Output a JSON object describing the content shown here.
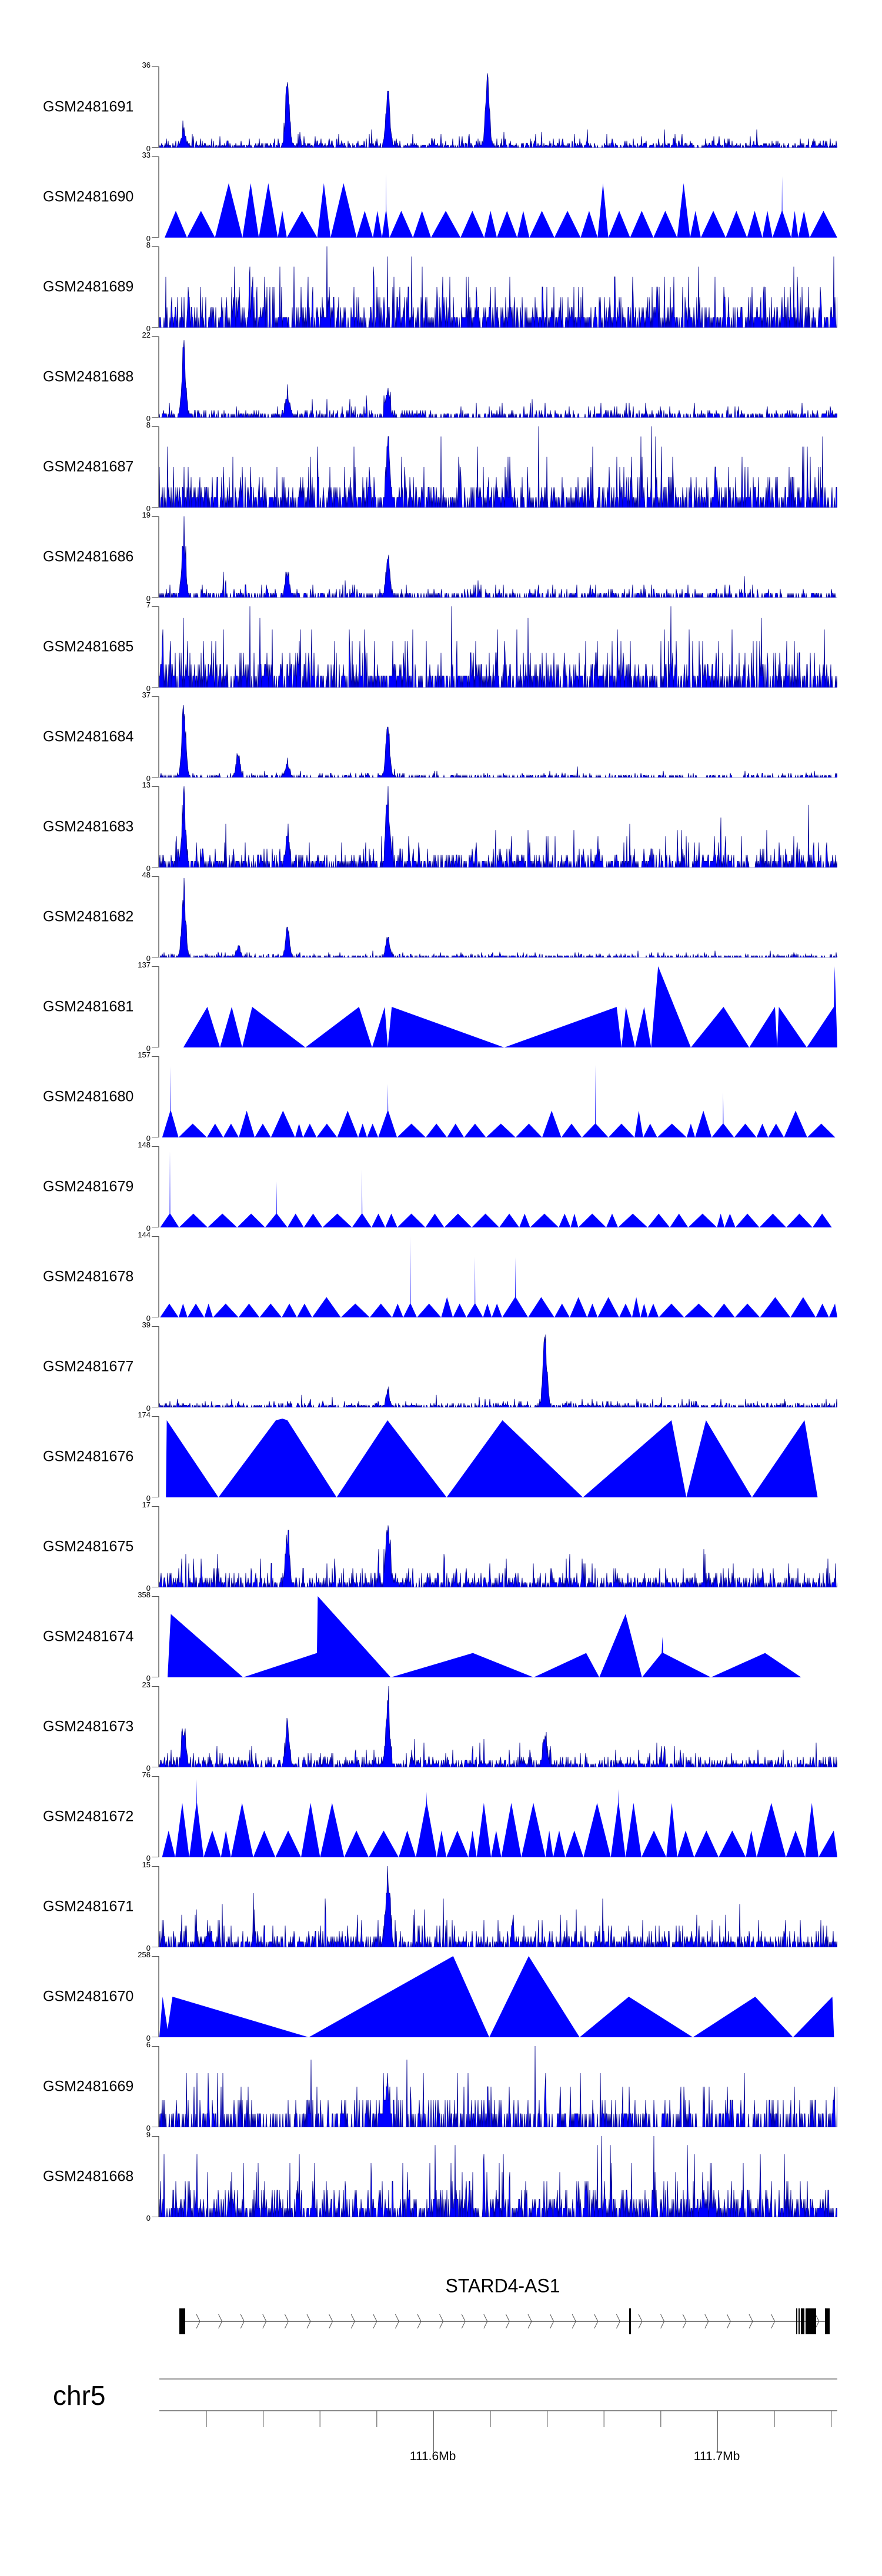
{
  "tracks": [
    {
      "name": "GSM2481691",
      "ymax": "36",
      "ymin": "0"
    },
    {
      "name": "GSM2481690",
      "ymax": "33",
      "ymin": "0"
    },
    {
      "name": "GSM2481689",
      "ymax": "8",
      "ymin": "0"
    },
    {
      "name": "GSM2481688",
      "ymax": "22",
      "ymin": "0"
    },
    {
      "name": "GSM2481687",
      "ymax": "8",
      "ymin": "0"
    },
    {
      "name": "GSM2481686",
      "ymax": "19",
      "ymin": "0"
    },
    {
      "name": "GSM2481685",
      "ymax": "7",
      "ymin": "0"
    },
    {
      "name": "GSM2481684",
      "ymax": "37",
      "ymin": "0"
    },
    {
      "name": "GSM2481683",
      "ymax": "13",
      "ymin": "0"
    },
    {
      "name": "GSM2481682",
      "ymax": "48",
      "ymin": "0"
    },
    {
      "name": "GSM2481681",
      "ymax": "137",
      "ymin": "0"
    },
    {
      "name": "GSM2481680",
      "ymax": "157",
      "ymin": "0"
    },
    {
      "name": "GSM2481679",
      "ymax": "148",
      "ymin": "0"
    },
    {
      "name": "GSM2481678",
      "ymax": "144",
      "ymin": "0"
    },
    {
      "name": "GSM2481677",
      "ymax": "39",
      "ymin": "0"
    },
    {
      "name": "GSM2481676",
      "ymax": "174",
      "ymin": "0"
    },
    {
      "name": "GSM2481675",
      "ymax": "17",
      "ymin": "0"
    },
    {
      "name": "GSM2481674",
      "ymax": "358",
      "ymin": "0"
    },
    {
      "name": "GSM2481673",
      "ymax": "23",
      "ymin": "0"
    },
    {
      "name": "GSM2481672",
      "ymax": "76",
      "ymin": "0"
    },
    {
      "name": "GSM2481671",
      "ymax": "15",
      "ymin": "0"
    },
    {
      "name": "GSM2481670",
      "ymax": "258",
      "ymin": "0"
    },
    {
      "name": "GSM2481669",
      "ymax": "6",
      "ymin": "0"
    },
    {
      "name": "GSM2481668",
      "ymax": "9",
      "ymin": "0"
    }
  ],
  "gene": {
    "name": "STARD4-AS1"
  },
  "genome_axis": {
    "chromosome": "chr5",
    "labels": [
      "111.6Mb",
      "111.7Mb"
    ]
  },
  "colors": {
    "fill": "#0000FF",
    "stroke": "#00008B",
    "axis": "#8a8a8a"
  },
  "chart_data": {
    "type": "area",
    "title": "",
    "xlabel": "chr5",
    "xlim_mb": [
      111.504,
      111.742
    ],
    "x_tick_labels": [
      "111.6Mb",
      "111.7Mb"
    ],
    "tracks_ylim_note": "each track y-range 0..ymax as listed in tracks",
    "gene": "STARD4-AS1"
  }
}
